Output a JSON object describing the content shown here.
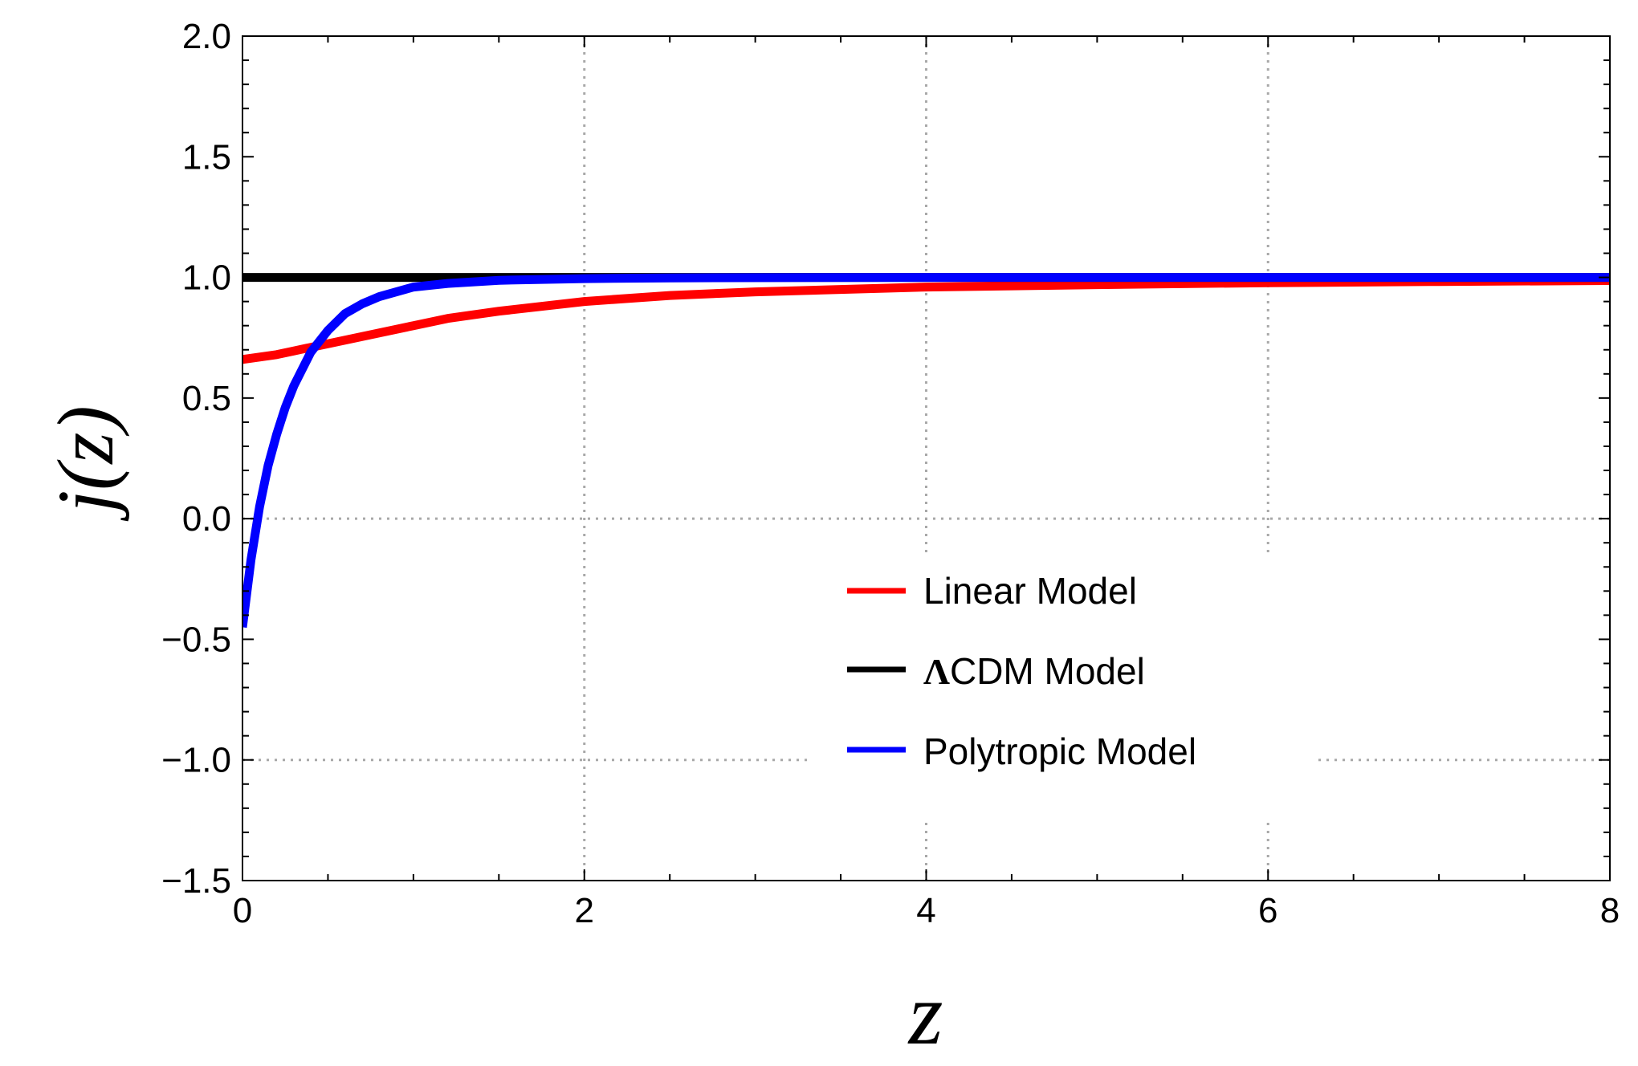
{
  "chart_data": {
    "type": "line",
    "title": "",
    "xlabel": "z",
    "ylabel": "j(z)",
    "xlim": [
      0,
      8
    ],
    "ylim": [
      -1.5,
      2.0
    ],
    "x_ticks": [
      0,
      2,
      4,
      6,
      8
    ],
    "x_tick_labels": [
      "0",
      "2",
      "4",
      "6",
      "8"
    ],
    "y_ticks": [
      -1.5,
      -1.0,
      -0.5,
      0.0,
      0.5,
      1.0,
      1.5,
      2.0
    ],
    "y_tick_labels": [
      "−1.5",
      "−1.0",
      "−0.5",
      "0.0",
      "0.5",
      "1.0",
      "1.5",
      "2.0"
    ],
    "grid": "dotted at x = 2, 4, 6 and y = 0, -1",
    "legend_position": "center-right",
    "series": [
      {
        "name": "Linear Model",
        "color": "#ff0000",
        "x": [
          0,
          0.1,
          0.2,
          0.3,
          0.4,
          0.5,
          0.6,
          0.8,
          1.0,
          1.2,
          1.5,
          2.0,
          2.5,
          3.0,
          4.0,
          5.0,
          6.0,
          7.0,
          8.0
        ],
        "y": [
          0.66,
          0.67,
          0.68,
          0.695,
          0.71,
          0.725,
          0.74,
          0.77,
          0.8,
          0.83,
          0.86,
          0.9,
          0.925,
          0.94,
          0.96,
          0.97,
          0.978,
          0.983,
          0.987
        ]
      },
      {
        "name": "ΛCDM Model",
        "legend_prefix": "Λ",
        "legend_suffix": "CDM Model",
        "color": "#000000",
        "x": [
          0,
          8
        ],
        "y": [
          1.0,
          1.0
        ]
      },
      {
        "name": "Polytropic Model",
        "color": "#0000ff",
        "x": [
          0,
          0.05,
          0.1,
          0.15,
          0.2,
          0.25,
          0.3,
          0.4,
          0.5,
          0.6,
          0.7,
          0.8,
          1.0,
          1.2,
          1.5,
          2.0,
          2.5,
          3.0,
          4.0,
          5.0,
          6.0,
          8.0
        ],
        "y": [
          -0.45,
          -0.17,
          0.05,
          0.22,
          0.35,
          0.46,
          0.55,
          0.69,
          0.78,
          0.85,
          0.89,
          0.92,
          0.96,
          0.975,
          0.988,
          0.995,
          0.998,
          0.999,
          1.0,
          1.0,
          1.0,
          1.0
        ]
      }
    ]
  }
}
